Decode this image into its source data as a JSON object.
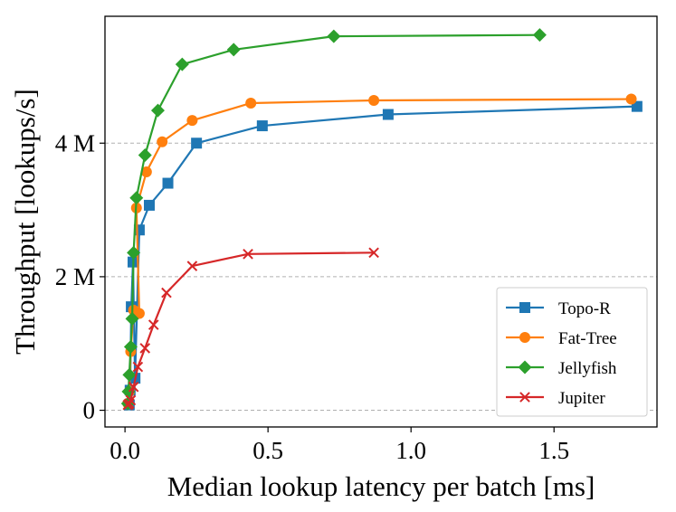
{
  "chart_data": {
    "type": "line",
    "title": "",
    "xlabel": "Median lookup latency per batch [ms]",
    "ylabel": "Throughput [lookups/s]",
    "xlim": [
      -0.07,
      1.86
    ],
    "ylim": [
      -0.25,
      5.9
    ],
    "x_ticks": [
      {
        "value": 0.0,
        "label": "0.0"
      },
      {
        "value": 0.5,
        "label": "0.5"
      },
      {
        "value": 1.0,
        "label": "1.0"
      },
      {
        "value": 1.5,
        "label": "1.5"
      }
    ],
    "y_ticks": [
      {
        "value": 0,
        "label": "0"
      },
      {
        "value": 2,
        "label": "2 M"
      },
      {
        "value": 4,
        "label": "4 M"
      }
    ],
    "y_unit": "millions of lookups/s",
    "grid": "horizontal dashed",
    "legend_position": "lower-right",
    "series": [
      {
        "name": "Topo-R",
        "color": "#1f77b4",
        "marker": "square",
        "x": [
          0.015,
          0.018,
          0.022,
          0.028,
          0.035,
          0.05,
          0.085,
          0.15,
          0.25,
          0.48,
          0.92,
          1.79
        ],
        "y": [
          0.08,
          0.3,
          1.55,
          2.22,
          0.48,
          2.7,
          3.07,
          3.4,
          4.0,
          4.26,
          4.43,
          4.55
        ]
      },
      {
        "name": "Fat-Tree",
        "color": "#ff7f0e",
        "marker": "circle",
        "x": [
          0.01,
          0.015,
          0.02,
          0.03,
          0.05,
          0.04,
          0.075,
          0.13,
          0.235,
          0.44,
          0.87,
          1.77
        ],
        "y": [
          0.1,
          0.28,
          0.88,
          1.5,
          1.45,
          3.03,
          3.57,
          4.02,
          4.34,
          4.6,
          4.64,
          4.66
        ]
      },
      {
        "name": "Jellyfish",
        "color": "#2ca02c",
        "marker": "diamond",
        "x": [
          0.01,
          0.012,
          0.015,
          0.02,
          0.025,
          0.03,
          0.04,
          0.07,
          0.115,
          0.2,
          0.38,
          0.73,
          1.45
        ],
        "y": [
          0.1,
          0.28,
          0.53,
          0.95,
          1.37,
          2.36,
          3.18,
          3.82,
          4.49,
          5.18,
          5.4,
          5.6,
          5.62
        ]
      },
      {
        "name": "Jupiter",
        "color": "#d62728",
        "marker": "x",
        "x": [
          0.01,
          0.015,
          0.02,
          0.03,
          0.045,
          0.07,
          0.1,
          0.145,
          0.235,
          0.43,
          0.87
        ],
        "y": [
          0.08,
          0.1,
          0.15,
          0.35,
          0.65,
          0.93,
          1.28,
          1.76,
          2.16,
          2.34,
          2.36
        ]
      }
    ]
  }
}
